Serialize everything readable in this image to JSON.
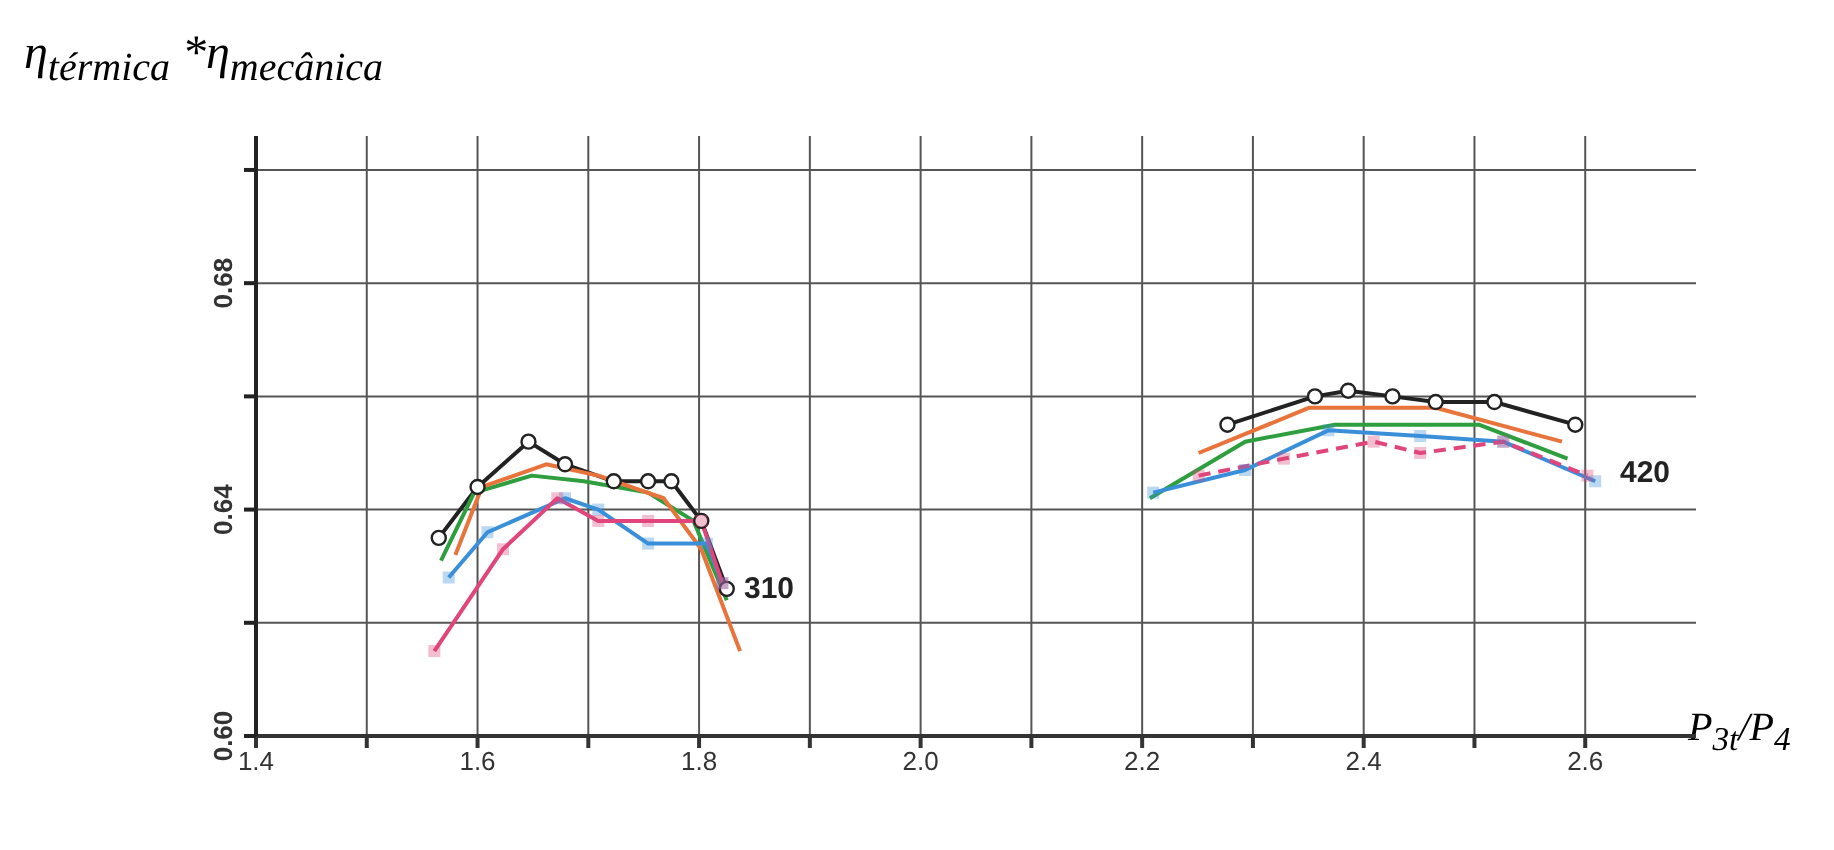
{
  "chart_data": {
    "type": "line",
    "ylabel": "η$_{térmica}$ *η$_{mecânica}$",
    "xlabel": "P$_{3t}$/P$_{4}$",
    "xlim": [
      1.4,
      2.7
    ],
    "ylim": [
      0.6,
      0.706
    ],
    "xticks": [
      1.4,
      {
        "value": 1.5,
        "label": null
      },
      {
        "value": 1.6,
        "label": "1.6"
      },
      {
        "value": 1.7,
        "label": null
      },
      {
        "value": 1.8,
        "label": "1.8"
      },
      {
        "value": 1.9,
        "label": null
      },
      {
        "value": 2.0,
        "label": "2.0"
      },
      {
        "value": 2.1,
        "label": null
      },
      {
        "value": 2.2,
        "label": "2.2"
      },
      {
        "value": 2.3,
        "label": null
      },
      {
        "value": 2.4,
        "label": "2.4"
      },
      {
        "value": 2.5,
        "label": null
      },
      {
        "value": 2.6,
        "label": "2.6"
      }
    ],
    "yticks": [
      {
        "value": 0.6,
        "label": "0.60"
      },
      {
        "value": 0.62,
        "label": null
      },
      {
        "value": 0.64,
        "label": "0.64"
      },
      {
        "value": 0.66,
        "label": null
      },
      {
        "value": 0.68,
        "label": "0.68"
      },
      {
        "value": 0.7,
        "label": null
      }
    ],
    "grid": true,
    "series": [
      {
        "color": "#222222",
        "marker": "circle",
        "x": [
          1.565,
          1.6,
          1.646,
          1.679,
          1.723,
          1.754,
          1.775,
          1.802,
          1.825
        ],
        "values": [
          0.635,
          0.644,
          0.652,
          0.648,
          0.645,
          0.645,
          0.645,
          0.638,
          0.626
        ]
      },
      {
        "color": "#2e9e3e",
        "marker": "none",
        "x": [
          1.567,
          1.597,
          1.649,
          1.696,
          1.754,
          1.795,
          1.825
        ],
        "values": [
          0.631,
          0.643,
          0.646,
          0.645,
          0.643,
          0.638,
          0.624
        ]
      },
      {
        "color": "#e8743b",
        "marker": "none",
        "x": [
          1.58,
          1.604,
          1.662,
          1.709,
          1.768,
          1.802,
          1.837
        ],
        "values": [
          0.632,
          0.644,
          0.648,
          0.646,
          0.642,
          0.633,
          0.615
        ]
      },
      {
        "color": "#3a8fd9",
        "marker": "square",
        "x": [
          1.574,
          1.609,
          1.679,
          1.709,
          1.754,
          1.807,
          1.821
        ],
        "values": [
          0.628,
          0.636,
          0.642,
          0.64,
          0.634,
          0.634,
          0.627
        ]
      },
      {
        "color": "#e0457b",
        "marker": "square",
        "x": [
          1.561,
          1.623,
          1.672,
          1.709,
          1.754,
          1.802,
          1.821
        ],
        "values": [
          0.615,
          0.633,
          0.642,
          0.638,
          0.638,
          0.638,
          0.627
        ]
      },
      {
        "color": "#222222",
        "marker": "circle",
        "x": [
          2.277,
          2.356,
          2.386,
          2.426,
          2.465,
          2.518,
          2.591
        ],
        "values": [
          0.655,
          0.66,
          0.661,
          0.66,
          0.659,
          0.659,
          0.655
        ]
      },
      {
        "color": "#e8743b",
        "marker": "none",
        "x": [
          2.251,
          2.351,
          2.465,
          2.579
        ],
        "values": [
          0.65,
          0.658,
          0.658,
          0.652
        ]
      },
      {
        "color": "#2e9e3e",
        "marker": "none",
        "x": [
          2.207,
          2.293,
          2.374,
          2.451,
          2.504,
          2.584
        ],
        "values": [
          0.642,
          0.652,
          0.655,
          0.655,
          0.655,
          0.649
        ]
      },
      {
        "color": "#3a8fd9",
        "marker": "square",
        "x": [
          2.21,
          2.293,
          2.368,
          2.451,
          2.526,
          2.609
        ],
        "values": [
          0.643,
          0.647,
          0.654,
          0.653,
          0.652,
          0.645
        ]
      },
      {
        "color": "#e0457b",
        "marker": "square",
        "line_style": "dashed",
        "x": [
          2.251,
          2.328,
          2.409,
          2.451,
          2.526,
          2.602
        ],
        "values": [
          0.646,
          0.649,
          0.652,
          0.65,
          0.652,
          0.646
        ]
      }
    ],
    "annotations": [
      "310",
      "420"
    ]
  }
}
